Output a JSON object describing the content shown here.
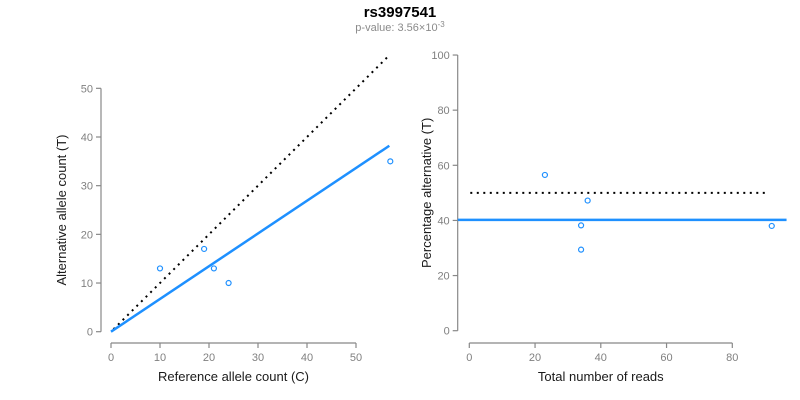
{
  "header": {
    "title": "rs3997541",
    "subtitle_base": "p-value: 3.56×10",
    "subtitle_exponent": "-3"
  },
  "colors": {
    "accent_blue": "#1E90FF",
    "axis_gray": "#888888",
    "tick_label_gray": "#808080",
    "axis_title_color": "#1a1a1a",
    "identity_black": "#000000"
  },
  "chart_data": [
    {
      "type": "scatter",
      "panel": "left",
      "xlabel": "Reference allele count (C)",
      "ylabel": "Alternative allele count (T)",
      "xticks": [
        0,
        10,
        20,
        30,
        40,
        50
      ],
      "yticks": [
        0,
        10,
        20,
        30,
        40,
        50
      ],
      "xlim": [
        0,
        57.8
      ],
      "ylim": [
        0,
        57.8
      ],
      "grid": false,
      "points": [
        [
          10,
          13
        ],
        [
          19,
          17
        ],
        [
          21,
          13
        ],
        [
          24,
          10
        ],
        [
          57,
          35
        ]
      ],
      "lines": [
        {
          "name": "identity-line",
          "style": "dotted",
          "color": "#000000",
          "from": [
            0.5,
            0.5
          ],
          "to": [
            56.5,
            56.5
          ]
        },
        {
          "name": "fit-line",
          "style": "solid",
          "color": "#1E90FF",
          "from": [
            0,
            0
          ],
          "to": [
            56.8,
            38.2
          ]
        }
      ]
    },
    {
      "type": "scatter",
      "panel": "right",
      "xlabel": "Total number of reads",
      "ylabel": "Percentage alternative (T)",
      "xticks": [
        0,
        20,
        40,
        60,
        80
      ],
      "yticks": [
        0,
        20,
        40,
        60,
        80,
        100
      ],
      "xlim": [
        0,
        96.5
      ],
      "ylim": [
        0,
        100
      ],
      "grid": false,
      "points": [
        [
          23,
          56.5
        ],
        [
          36,
          47.2
        ],
        [
          34,
          38.2
        ],
        [
          34,
          29.4
        ],
        [
          92,
          38.0
        ]
      ],
      "lines": [
        {
          "name": "expected-50-line",
          "style": "dotted",
          "color": "#000000",
          "from": [
            0.3,
            50
          ],
          "to": [
            91,
            50
          ]
        },
        {
          "name": "mean-percentage-line",
          "style": "solid",
          "color": "#1E90FF",
          "from": [
            -3.5,
            40.2
          ],
          "to": [
            96.5,
            40.2
          ]
        }
      ]
    }
  ]
}
